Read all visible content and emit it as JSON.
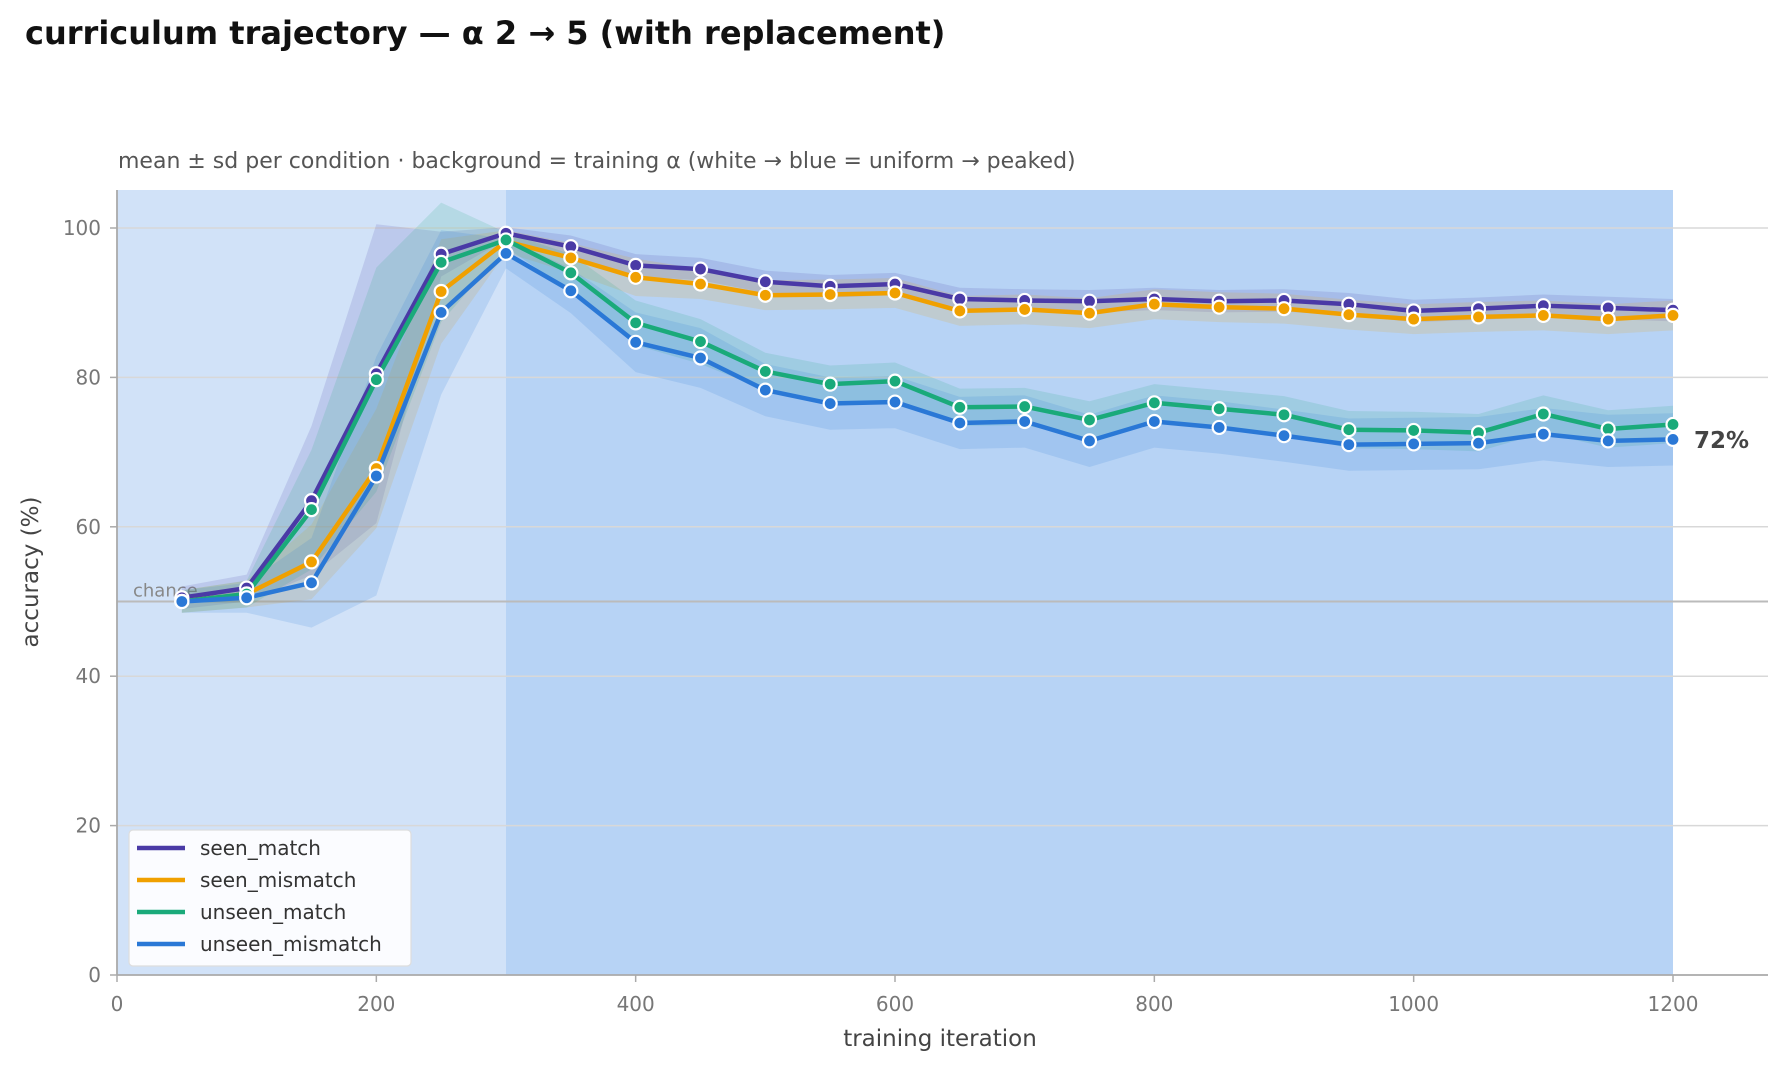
{
  "chart_data": {
    "type": "line",
    "title": "curriculum trajectory — α 2 → 5 (with replacement)",
    "subtitle": "mean ± sd per condition · background = training α (white → blue = uniform → peaked)",
    "xlabel": "training iteration",
    "ylabel": "accuracy (%)",
    "xlim": [
      0,
      1275
    ],
    "ylim": [
      0,
      105
    ],
    "xticks": [
      0,
      200,
      400,
      600,
      800,
      1000,
      1200
    ],
    "yticks": [
      0,
      20,
      40,
      60,
      80,
      100
    ],
    "grid": "horizontal",
    "legend_position": "lower-left",
    "chance": {
      "label": "chance",
      "y": 50
    },
    "end_label": "72%",
    "background_bands": [
      {
        "x0": 0,
        "x1": 300,
        "color": "#d1e2f8"
      },
      {
        "x0": 300,
        "x1": 1200,
        "color": "#b7d3f5"
      }
    ],
    "x": [
      50,
      100,
      150,
      200,
      250,
      300,
      350,
      400,
      450,
      500,
      550,
      600,
      650,
      700,
      750,
      800,
      850,
      900,
      950,
      1000,
      1050,
      1100,
      1150,
      1200
    ],
    "series": [
      {
        "name": "seen_match",
        "color": "#4a3aa6",
        "values": [
          50.5,
          51.8,
          63.5,
          80.5,
          96.5,
          99.3,
          97.5,
          95.0,
          94.5,
          92.8,
          92.2,
          92.5,
          90.5,
          90.3,
          90.2,
          90.5,
          90.2,
          90.3,
          89.8,
          88.9,
          89.2,
          89.6,
          89.3,
          89.0
        ],
        "sd": [
          1.5,
          1.8,
          10.0,
          20.0,
          3.0,
          0.8,
          1.5,
          1.5,
          1.5,
          1.5,
          1.5,
          1.5,
          1.5,
          1.5,
          1.5,
          1.5,
          1.5,
          1.5,
          1.5,
          1.5,
          1.5,
          1.5,
          1.5,
          1.5
        ]
      },
      {
        "name": "seen_mismatch",
        "color": "#f0a000",
        "values": [
          50.0,
          51.0,
          55.3,
          67.8,
          91.5,
          98.2,
          96.0,
          93.4,
          92.5,
          91.0,
          91.1,
          91.3,
          88.9,
          89.1,
          88.6,
          89.8,
          89.4,
          89.2,
          88.4,
          87.8,
          88.1,
          88.3,
          87.8,
          88.3
        ],
        "sd": [
          1.5,
          1.8,
          5.0,
          8.0,
          7.0,
          1.5,
          2.0,
          2.5,
          2.0,
          2.0,
          2.0,
          2.0,
          2.0,
          2.0,
          2.0,
          2.0,
          2.0,
          2.0,
          2.0,
          2.0,
          2.0,
          2.0,
          2.0,
          2.0
        ]
      },
      {
        "name": "unseen_match",
        "color": "#1aaa7a",
        "values": [
          50.0,
          51.0,
          62.3,
          79.7,
          95.4,
          98.4,
          94.0,
          87.3,
          84.8,
          80.8,
          79.1,
          79.5,
          76.0,
          76.1,
          74.3,
          76.6,
          75.8,
          75.0,
          73.0,
          72.9,
          72.6,
          75.1,
          73.1,
          73.7
        ],
        "sd": [
          1.5,
          1.8,
          8.0,
          15.0,
          8.0,
          1.0,
          2.5,
          3.0,
          3.0,
          2.5,
          2.5,
          2.5,
          2.5,
          2.5,
          2.5,
          2.5,
          2.5,
          2.5,
          2.5,
          2.5,
          2.5,
          2.5,
          2.5,
          2.5
        ]
      },
      {
        "name": "unseen_mismatch",
        "color": "#2a78d6",
        "values": [
          50.0,
          50.5,
          52.5,
          66.8,
          88.7,
          96.6,
          91.6,
          84.7,
          82.6,
          78.3,
          76.5,
          76.7,
          73.9,
          74.1,
          71.5,
          74.1,
          73.3,
          72.2,
          71.0,
          71.1,
          71.2,
          72.4,
          71.5,
          71.7
        ],
        "sd": [
          1.5,
          2.0,
          6.0,
          16.0,
          11.0,
          2.0,
          3.0,
          4.0,
          4.0,
          3.5,
          3.5,
          3.5,
          3.5,
          3.5,
          3.5,
          3.5,
          3.5,
          3.5,
          3.5,
          3.5,
          3.5,
          3.5,
          3.5,
          3.5
        ]
      }
    ]
  }
}
